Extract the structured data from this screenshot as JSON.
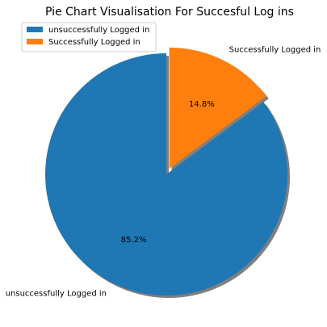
{
  "chart_data": {
    "type": "pie",
    "title": "Pie Chart Visualisation For Succesful Log ins",
    "slices": [
      {
        "label": "unsuccessfully Logged in",
        "value": 85.2,
        "percent_label": "85.2%",
        "color": "#1f77b4",
        "exploded": false
      },
      {
        "label": "Successfully Logged in",
        "value": 14.8,
        "percent_label": "14.8%",
        "color": "#ff7f0e",
        "exploded": true
      }
    ],
    "start_angle_deg": 90,
    "direction": "counterclockwise",
    "shadow": true,
    "legend": {
      "placement": "top-left",
      "entries": [
        "unsuccessfully Logged in",
        "Successfully Logged in"
      ]
    }
  }
}
